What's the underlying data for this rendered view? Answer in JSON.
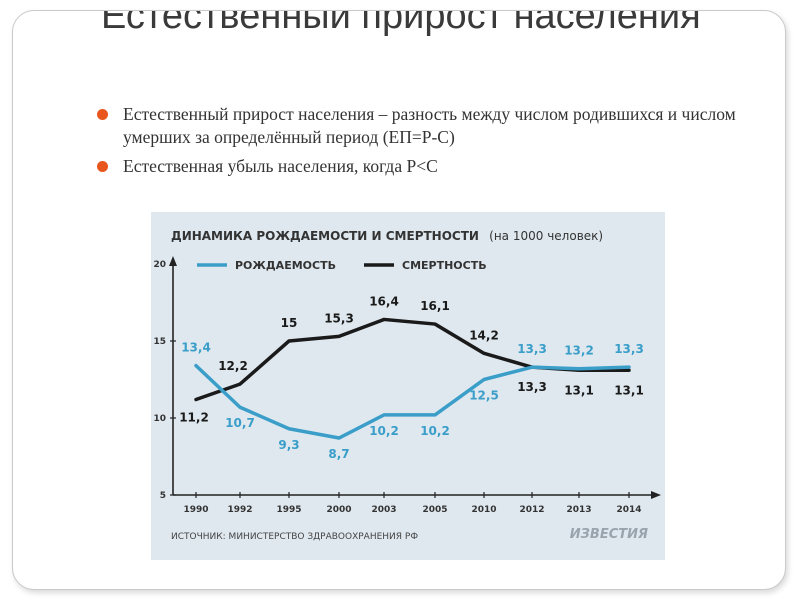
{
  "slide": {
    "title": "Естественный прирост населения",
    "bullets": [
      "Естественный прирост населения – разность между числом родившихся и числом умерших за определённый период (ЕП=Р-С)",
      "Естественная убыль населения, когда Р<С"
    ]
  },
  "chart_data": {
    "type": "line",
    "title": "ДИНАМИКА РОЖДАЕМОСТИ И СМЕРТНОСТИ",
    "subtitle": "(на 1000 человек)",
    "categories": [
      "1990",
      "1992",
      "1995",
      "2000",
      "2003",
      "2005",
      "2010",
      "2012",
      "2013",
      "2014"
    ],
    "series": [
      {
        "name": "РОЖДАЕМОСТЬ",
        "color": "#3a9ec9",
        "values": [
          13.4,
          10.7,
          9.3,
          8.7,
          10.2,
          10.2,
          12.5,
          13.3,
          13.2,
          13.3
        ],
        "labels": [
          "13,4",
          "10,7",
          "9,3",
          "8,7",
          "10,2",
          "10,2",
          "12,5",
          "13,3",
          "13,2",
          "13,3"
        ]
      },
      {
        "name": "СМЕРТНОСТЬ",
        "color": "#1a1a1a",
        "values": [
          11.2,
          12.2,
          15,
          15.3,
          16.4,
          16.1,
          14.2,
          13.3,
          13.1,
          13.1
        ],
        "labels": [
          "11,2",
          "12,2",
          "15",
          "15,3",
          "16,4",
          "16,1",
          "14,2",
          "13,3",
          "13,1",
          "13,1"
        ]
      }
    ],
    "yticks": [
      "5",
      "10",
      "15",
      "20"
    ],
    "ylim": [
      5,
      20
    ],
    "grid": false,
    "legend": "top",
    "source": "ИСТОЧНИК: МИНИСТЕРСТВО ЗДРАВООХРАНЕНИЯ РФ",
    "logo": "ИЗВЕСТИЯ",
    "background": "#dfe8ef"
  }
}
